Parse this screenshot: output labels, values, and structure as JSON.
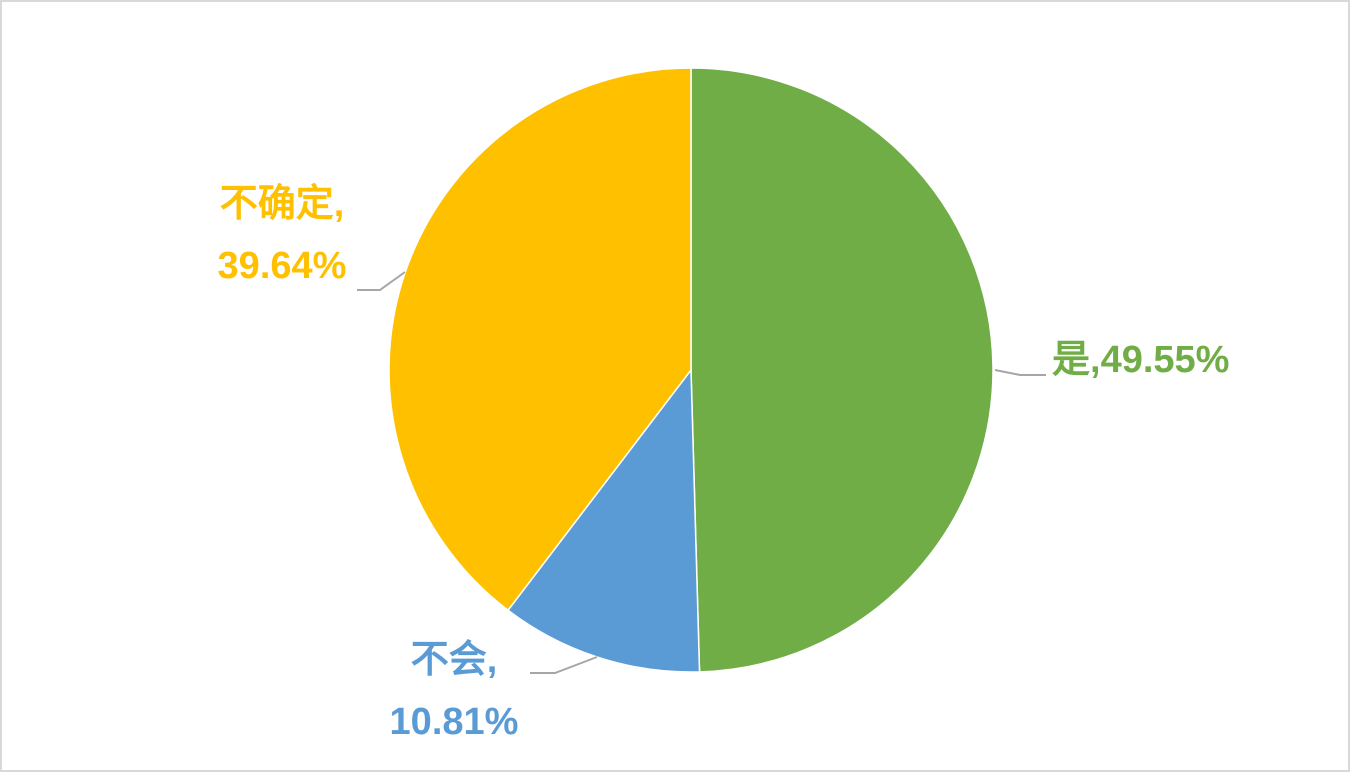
{
  "chart_data": {
    "type": "pie",
    "categories": [
      "是",
      "不会",
      "不确定"
    ],
    "values": [
      49.55,
      10.81,
      39.64
    ],
    "value_labels": [
      "49.55%",
      "10.81%",
      "39.64%"
    ],
    "label_separator": ",",
    "colors": [
      "#70ad47",
      "#5b9bd5",
      "#ffc000"
    ]
  }
}
